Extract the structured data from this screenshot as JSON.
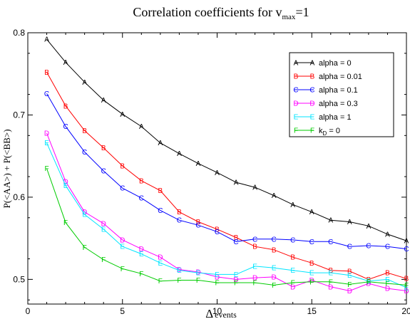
{
  "chart_data": {
    "type": "line",
    "title": "Correlation coefficients for v",
    "title_sub": "max",
    "title_tail": "=1",
    "xlabel_symbol": "Δ",
    "xlabel_text": "events",
    "ylabel": "P(<AA>) + P(<BB>)",
    "xlim": [
      0,
      20
    ],
    "ylim": [
      0.47,
      0.8
    ],
    "xticks": [
      0,
      5,
      10,
      15,
      20
    ],
    "yticks": [
      0.5,
      0.6,
      0.7,
      0.8
    ],
    "x": [
      1,
      2,
      3,
      4,
      5,
      6,
      7,
      8,
      9,
      10,
      11,
      12,
      13,
      14,
      15,
      16,
      17,
      18,
      19,
      20
    ],
    "legend_position": "top-right",
    "grid": false,
    "series": [
      {
        "name": "alpha = 0",
        "marker": "A",
        "color": "#000000",
        "values": [
          0.792,
          0.764,
          0.74,
          0.718,
          0.701,
          0.686,
          0.666,
          0.653,
          0.641,
          0.63,
          0.618,
          0.612,
          0.602,
          0.591,
          0.582,
          0.572,
          0.57,
          0.565,
          0.555,
          0.547
        ]
      },
      {
        "name": "alpha = 0.01",
        "marker": "B",
        "color": "#ff0000",
        "values": [
          0.752,
          0.711,
          0.681,
          0.66,
          0.638,
          0.62,
          0.608,
          0.582,
          0.57,
          0.561,
          0.551,
          0.54,
          0.536,
          0.527,
          0.52,
          0.511,
          0.51,
          0.5,
          0.508,
          0.501
        ]
      },
      {
        "name": "alpha = 0.1",
        "marker": "C",
        "color": "#0000ff",
        "values": [
          0.726,
          0.686,
          0.655,
          0.632,
          0.611,
          0.599,
          0.584,
          0.572,
          0.566,
          0.558,
          0.546,
          0.549,
          0.549,
          0.548,
          0.546,
          0.546,
          0.54,
          0.541,
          0.54,
          0.537
        ]
      },
      {
        "name": "alpha = 0.3",
        "marker": "D",
        "color": "#ff00ff",
        "values": [
          0.678,
          0.619,
          0.582,
          0.568,
          0.548,
          0.537,
          0.527,
          0.512,
          0.509,
          0.503,
          0.5,
          0.502,
          0.503,
          0.491,
          0.499,
          0.491,
          0.486,
          0.495,
          0.489,
          0.486
        ]
      },
      {
        "name": "alpha = 1",
        "marker": "E",
        "color": "#00e5ff",
        "values": [
          0.666,
          0.614,
          0.579,
          0.561,
          0.54,
          0.531,
          0.52,
          0.511,
          0.508,
          0.506,
          0.506,
          0.516,
          0.514,
          0.511,
          0.508,
          0.508,
          0.505,
          0.498,
          0.5,
          0.49
        ]
      },
      {
        "name": "k_D = 0",
        "marker": "F",
        "color": "#00cc00",
        "values": [
          0.635,
          0.569,
          0.539,
          0.524,
          0.513,
          0.507,
          0.498,
          0.499,
          0.499,
          0.496,
          0.496,
          0.496,
          0.493,
          0.496,
          0.497,
          0.497,
          0.494,
          0.497,
          0.495,
          0.493
        ]
      }
    ]
  }
}
